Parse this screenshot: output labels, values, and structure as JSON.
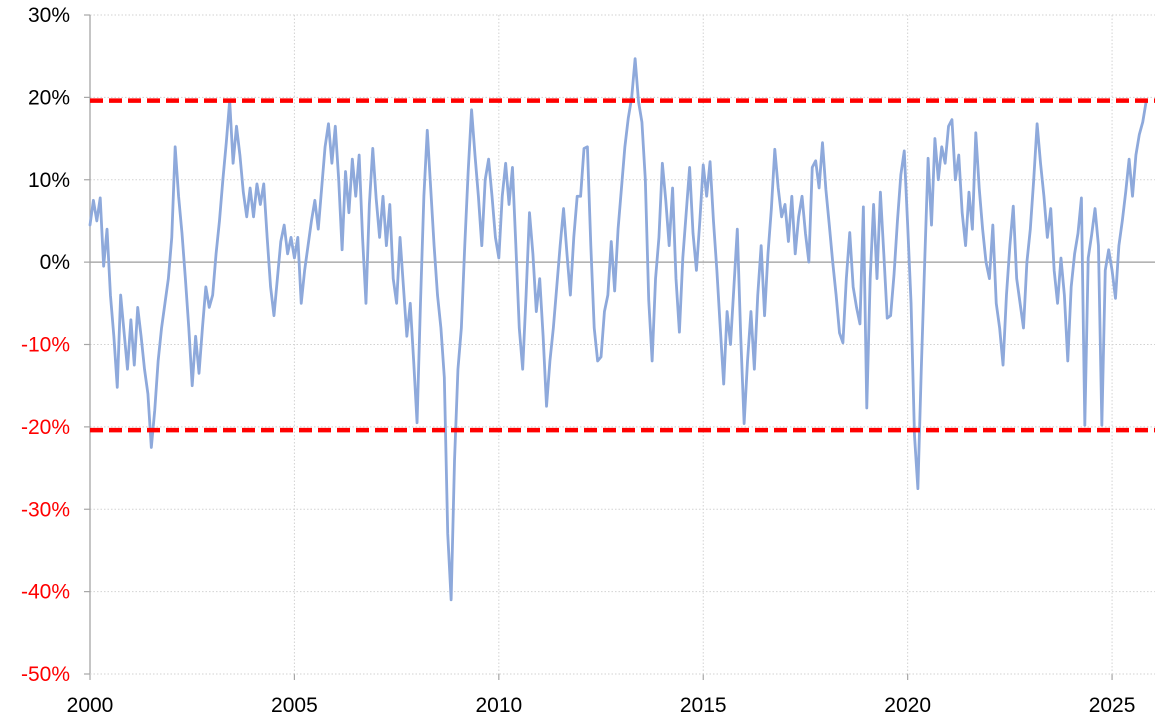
{
  "chart_data": {
    "type": "line",
    "title": "",
    "xlabel": "",
    "ylabel": "",
    "unit": "%",
    "grid": true,
    "legend": "none",
    "xlim": [
      2000,
      2026.05
    ],
    "ylim": [
      -50,
      30
    ],
    "x_ticks": [
      "2000",
      "2005",
      "2010",
      "2015",
      "2020",
      "2025"
    ],
    "x_tick_years": [
      2000,
      2005,
      2010,
      2015,
      2020,
      2025
    ],
    "y_ticks": [
      "30%",
      "20%",
      "10%",
      "0%",
      "-10%",
      "-20%",
      "-30%",
      "-40%",
      "-50%"
    ],
    "y_tick_values": [
      30,
      20,
      10,
      0,
      -10,
      -20,
      -30,
      -40,
      -50
    ],
    "reference_lines": [
      {
        "name": "upper-red-dashed-line",
        "value": 19.6,
        "style": "dashed",
        "color": "#FF0000"
      },
      {
        "name": "lower-red-dashed-line",
        "value": -20.4,
        "style": "dashed",
        "color": "#FF0000"
      }
    ],
    "colors": {
      "series": "#8EA9DB",
      "reference": "#FF0000",
      "positive_tick_label": "#000000",
      "negative_tick_label": "#FF0000",
      "gridline": "#D2D2D2",
      "zero_line": "#9B9B9B",
      "axis_line": "#A6A6A6"
    },
    "series": [
      {
        "name": "monthly-percent-change",
        "x_start_year": 2000,
        "x_step_months": 1,
        "values": [
          4.5,
          7.5,
          5.0,
          7.8,
          -0.5,
          4.0,
          -4.0,
          -9.0,
          -15.2,
          -4.0,
          -8.5,
          -13.0,
          -7.0,
          -12.5,
          -5.5,
          -9.0,
          -13.0,
          -16.0,
          -22.5,
          -18.0,
          -12.0,
          -8.0,
          -5.0,
          -2.0,
          3.0,
          14.0,
          8.0,
          3.5,
          -2.0,
          -8.0,
          -15.0,
          -9.0,
          -13.5,
          -8.0,
          -3.0,
          -5.5,
          -4.0,
          1.0,
          5.0,
          10.0,
          14.5,
          19.6,
          12.0,
          16.5,
          13.0,
          8.5,
          5.5,
          9.0,
          5.5,
          9.5,
          7.0,
          9.5,
          3.0,
          -3.0,
          -6.5,
          -2.0,
          2.5,
          4.5,
          1.0,
          3.0,
          0.5,
          3.0,
          -5.0,
          -1.0,
          2.0,
          5.0,
          7.5,
          4.0,
          9.0,
          14.0,
          16.8,
          12.0,
          16.5,
          10.0,
          1.5,
          11.0,
          6.0,
          12.5,
          8.0,
          13.0,
          3.0,
          -5.0,
          7.0,
          13.8,
          7.7,
          3.0,
          8.0,
          2.0,
          7.0,
          -2.0,
          -5.0,
          3.0,
          -3.0,
          -9.0,
          -5.0,
          -12.0,
          -19.5,
          -5.0,
          8.0,
          16.0,
          9.0,
          2.0,
          -4.0,
          -8.0,
          -14.0,
          -33.0,
          -41.0,
          -24.0,
          -13.0,
          -8.0,
          2.0,
          11.0,
          18.5,
          13.0,
          8.0,
          2.0,
          10.0,
          12.5,
          8.0,
          3.0,
          0.5,
          8.0,
          12.0,
          7.0,
          11.5,
          2.0,
          -8.0,
          -13.0,
          -4.0,
          6.0,
          1.0,
          -6.0,
          -2.0,
          -9.0,
          -17.5,
          -12.0,
          -8.0,
          -3.0,
          2.0,
          6.5,
          1.0,
          -4.0,
          3.0,
          8.0,
          8.0,
          13.8,
          14.0,
          2.0,
          -8.0,
          -12.0,
          -11.5,
          -6.0,
          -4.0,
          2.5,
          -3.5,
          4.0,
          9.0,
          14.0,
          17.5,
          20.0,
          24.7,
          19.5,
          17.0,
          10.0,
          -4.6,
          -12.0,
          -2.0,
          3.0,
          12.0,
          7.5,
          2.0,
          9.0,
          -2.0,
          -8.5,
          0.5,
          6.0,
          11.5,
          3.5,
          -1.0,
          5.0,
          11.8,
          8.0,
          12.2,
          5.0,
          -1.0,
          -8.0,
          -14.8,
          -6.0,
          -10.0,
          -3.0,
          4.0,
          -9.0,
          -19.6,
          -12.0,
          -6.0,
          -13.0,
          -4.0,
          2.0,
          -6.5,
          1.0,
          6.5,
          13.7,
          9.0,
          5.5,
          7.0,
          2.5,
          8.0,
          1.0,
          5.5,
          8.0,
          3.5,
          0.0,
          11.5,
          12.3,
          9.0,
          14.5,
          8.8,
          4.5,
          0.0,
          -4.0,
          -8.6,
          -9.8,
          -2.0,
          3.6,
          -3.0,
          -5.5,
          -7.5,
          6.7,
          -17.7,
          -2.0,
          7.0,
          -2.0,
          8.5,
          1.0,
          -6.8,
          -6.5,
          -1.5,
          5.0,
          10.6,
          13.5,
          4.5,
          -5.0,
          -21.0,
          -27.5,
          -13.0,
          0.0,
          12.6,
          4.5,
          15.0,
          10.0,
          14.0,
          12.0,
          16.5,
          17.3,
          10.0,
          13.0,
          6.0,
          2.0,
          8.5,
          4.0,
          15.7,
          9.0,
          4.0,
          0.0,
          -2.0,
          4.5,
          -5.0,
          -8.0,
          -12.5,
          -4.0,
          2.0,
          6.8,
          -2.0,
          -5.0,
          -8.0,
          0.0,
          4.0,
          10.0,
          16.8,
          12.0,
          8.0,
          3.0,
          6.5,
          -1.0,
          -5.0,
          0.5,
          -4.0,
          -12.0,
          -3.0,
          1.0,
          3.5,
          7.8,
          -19.8,
          0.5,
          3.3,
          6.5,
          2.0,
          -19.8,
          -1.0,
          1.5,
          -1.0,
          -4.4,
          2.0,
          5.0,
          8.5,
          12.5,
          8.0,
          13.0,
          15.5,
          17.0,
          19.5
        ]
      }
    ]
  }
}
